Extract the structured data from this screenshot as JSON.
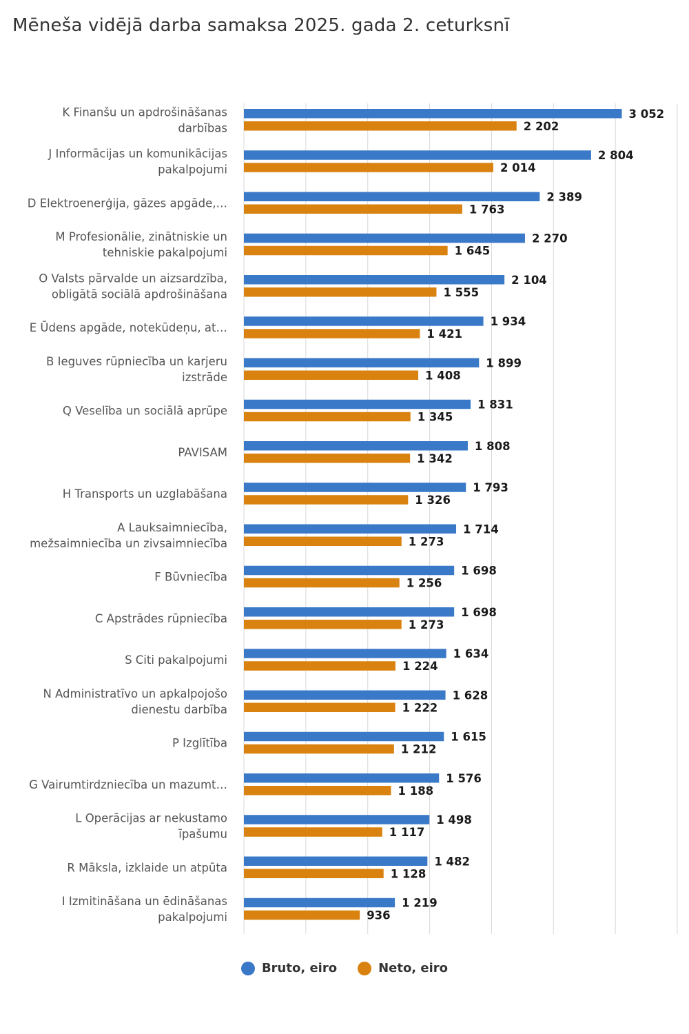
{
  "title": "Mēneša vidējā darba samaksa 2025. gada 2. ceturksnī",
  "colors": {
    "bruto": "#3a78c8",
    "neto": "#d9820f",
    "grid": "#d8d8d8"
  },
  "chart_data": {
    "type": "bar",
    "orientation": "horizontal",
    "title": "Mēneša vidējā darba samaksa 2025. gada 2. ceturksnī",
    "xlim": [
      0,
      3500
    ],
    "grid": true,
    "legend_position": "bottom",
    "categories": [
      [
        "K Finanšu un apdrošināšanas",
        "darbības"
      ],
      [
        "J Informācijas un komunikācijas",
        "pakalpojumi"
      ],
      [
        "D Elektroenerģija, gāzes apgāde,…"
      ],
      [
        "M Profesionālie, zinātniskie un",
        "tehniskie pakalpojumi"
      ],
      [
        "O Valsts pārvalde un aizsardzība,",
        "obligātā sociālā apdrošināšana"
      ],
      [
        "E Ūdens apgāde, notekūdeņu, at…"
      ],
      [
        "B Ieguves rūpniecība un karjeru",
        "izstrāde"
      ],
      [
        "Q Veselība un sociālā aprūpe"
      ],
      [
        "PAVISAM"
      ],
      [
        "H Transports un uzglabāšana"
      ],
      [
        "A Lauksaimniecība,",
        "mežsaimniecība un zivsaimniecība"
      ],
      [
        "F Būvniecība"
      ],
      [
        "C Apstrādes rūpniecība"
      ],
      [
        "S Citi pakalpojumi"
      ],
      [
        "N Administratīvo un apkalpojošo",
        "dienestu darbība"
      ],
      [
        "P Izglītība"
      ],
      [
        "G Vairumtirdzniecība un mazumt…"
      ],
      [
        "L Operācijas ar nekustamo",
        "īpašumu"
      ],
      [
        "R Māksla, izklaide un atpūta"
      ],
      [
        "I Izmitināšana un ēdināšanas",
        "pakalpojumi"
      ]
    ],
    "series": [
      {
        "name": "Bruto, eiro",
        "values": [
          3052,
          2804,
          2389,
          2270,
          2104,
          1934,
          1899,
          1831,
          1808,
          1793,
          1714,
          1698,
          1698,
          1634,
          1628,
          1615,
          1576,
          1498,
          1482,
          1219
        ],
        "labels": [
          "3 052",
          "2 804",
          "2 389",
          "2 270",
          "2 104",
          "1 934",
          "1 899",
          "1 831",
          "1 808",
          "1 793",
          "1 714",
          "1 698",
          "1 698",
          "1 634",
          "1 628",
          "1 615",
          "1 576",
          "1 498",
          "1 482",
          "1 219"
        ]
      },
      {
        "name": "Neto, eiro",
        "values": [
          2202,
          2014,
          1763,
          1645,
          1555,
          1421,
          1408,
          1345,
          1342,
          1326,
          1273,
          1256,
          1273,
          1224,
          1222,
          1212,
          1188,
          1117,
          1128,
          936
        ],
        "labels": [
          "2 202",
          "2 014",
          "1 763",
          "1 645",
          "1 555",
          "1 421",
          "1 408",
          "1 345",
          "1 342",
          "1 326",
          "1 273",
          "1 256",
          "1 273",
          "1 224",
          "1 222",
          "1 212",
          "1 188",
          "1 117",
          "1 128",
          "936"
        ]
      }
    ]
  }
}
